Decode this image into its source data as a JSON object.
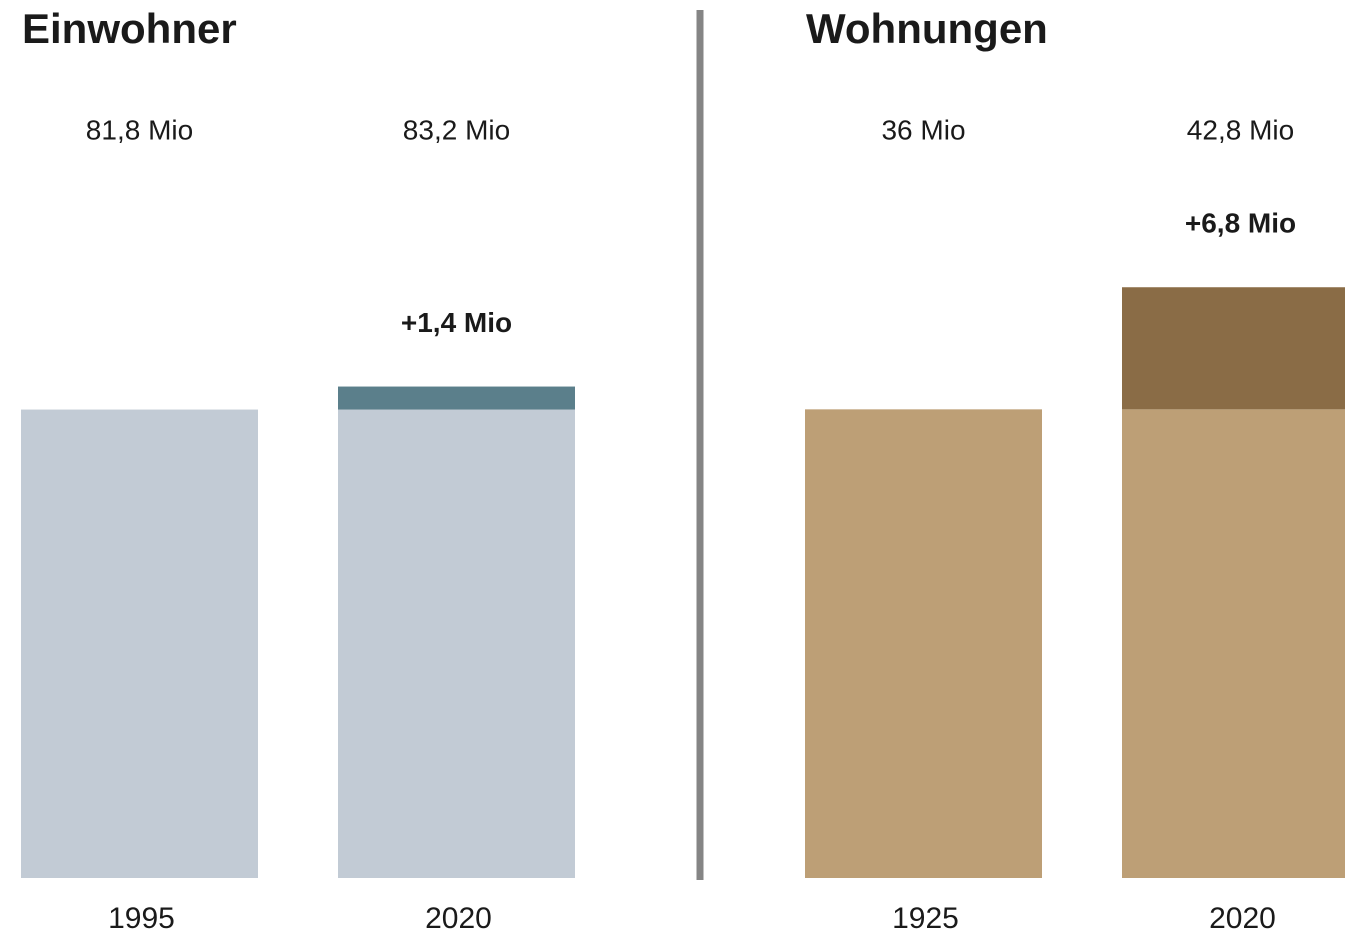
{
  "chart_data": [
    {
      "type": "bar",
      "title": "Einwohner",
      "categories": [
        "1995",
        "2020"
      ],
      "values": [
        81.8,
        83.2
      ],
      "value_labels": [
        "81,8 Mio",
        "83,2 Mio"
      ],
      "change": 1.4,
      "change_label": "+1,4 Mio",
      "color": "#c2cbd5",
      "change_color": "#5b7f8b",
      "ylim": [
        53.3,
        98.2
      ]
    },
    {
      "type": "bar",
      "title": "Wohnungen",
      "categories": [
        "1925",
        "2020"
      ],
      "values": [
        36,
        42.8
      ],
      "value_labels": [
        "36 Mio",
        "42,8 Mio"
      ],
      "change": 6.8,
      "change_label": "+6,8 Mio",
      "color": "#bd9f76",
      "change_color": "#8a6c46",
      "ylim": [
        9.9,
        51
      ]
    }
  ]
}
